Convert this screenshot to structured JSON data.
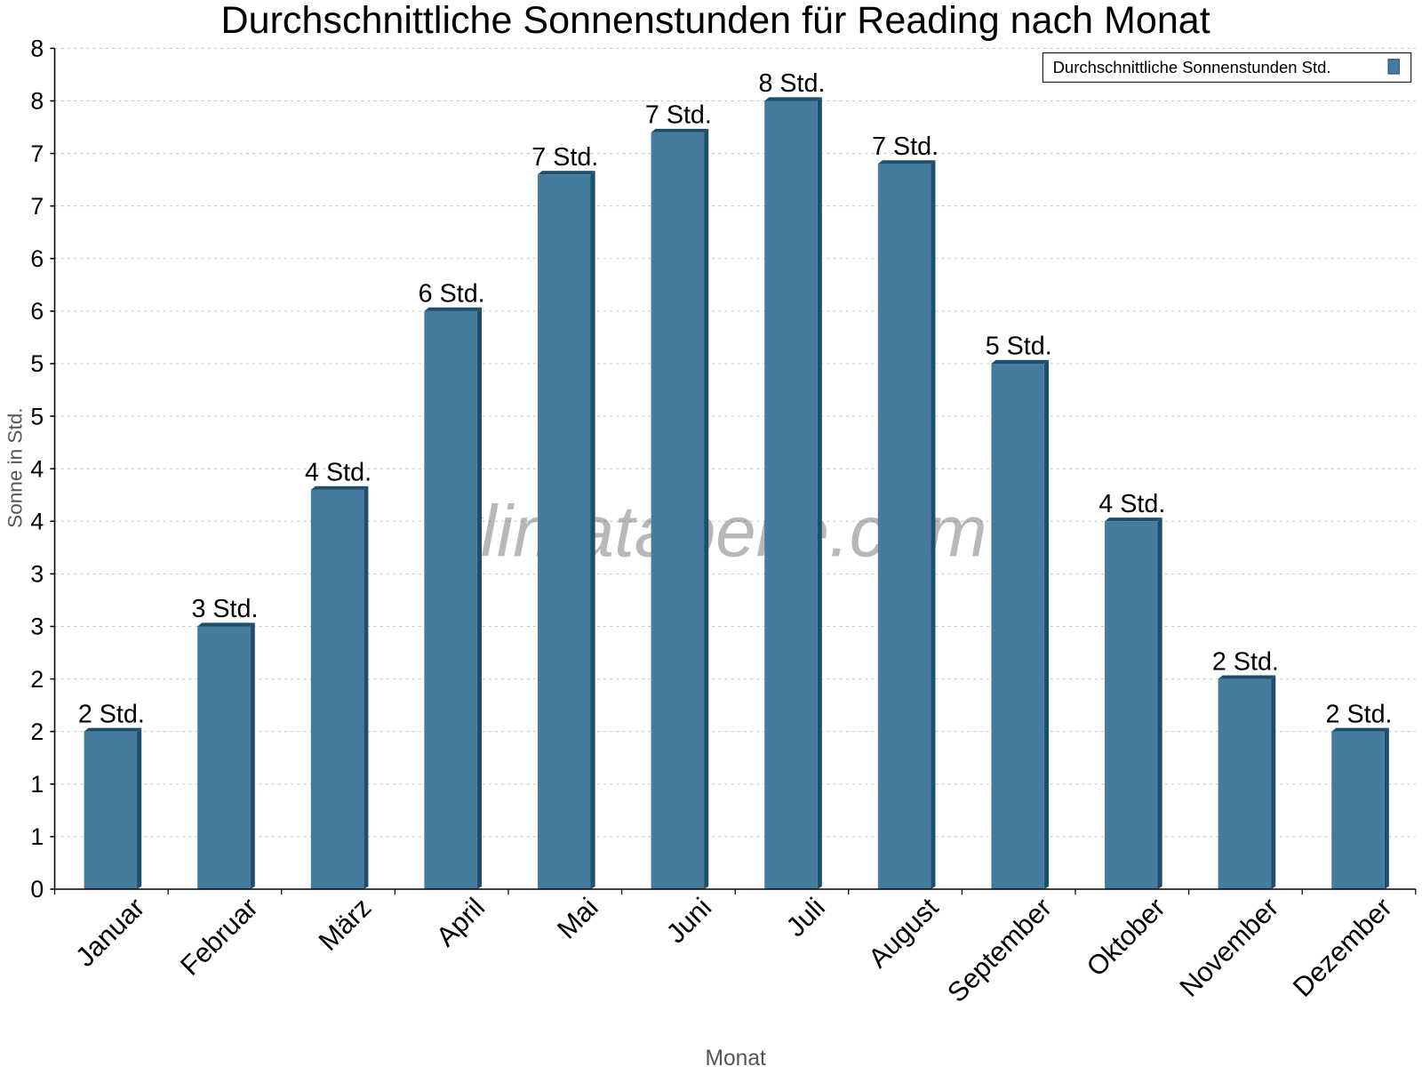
{
  "chart_data": {
    "type": "bar",
    "title": "Durchschnittliche Sonnenstunden für Reading nach Monat",
    "xlabel": "Monat",
    "ylabel": "Sonne in Std.",
    "categories": [
      "Januar",
      "Februar",
      "März",
      "April",
      "Mai",
      "Juni",
      "Juli",
      "August",
      "September",
      "Oktober",
      "November",
      "Dezember"
    ],
    "series": [
      {
        "name": "Durchschnittliche Sonnenstunden Std.",
        "values": [
          1.5,
          2.5,
          3.8,
          5.5,
          6.8,
          7.2,
          7.5,
          6.9,
          5.0,
          3.5,
          2.0,
          1.5
        ],
        "data_labels": [
          "2 Std.",
          "3 Std.",
          "4 Std.",
          "6 Std.",
          "7 Std.",
          "7 Std.",
          "8 Std.",
          "7 Std.",
          "5 Std.",
          "4 Std.",
          "2 Std.",
          "2 Std."
        ]
      }
    ],
    "ylim": [
      0,
      8
    ],
    "ytick_values": [
      0,
      0.5,
      1,
      1.5,
      2,
      2.5,
      3,
      3.5,
      4,
      4.5,
      5,
      5.5,
      6,
      6.5,
      7,
      7.5,
      8
    ],
    "ytick_labels": [
      "0",
      "1",
      "1",
      "2",
      "2",
      "3",
      "3",
      "4",
      "4",
      "5",
      "5",
      "6",
      "6",
      "7",
      "7",
      "8",
      "8"
    ],
    "grid": true,
    "legend_position": "top-right",
    "watermark": "klimatabelle.com",
    "colors": {
      "bar": "#457b9d",
      "bar_side": "#1d4e6e",
      "grid": "#c8c8c8"
    }
  }
}
